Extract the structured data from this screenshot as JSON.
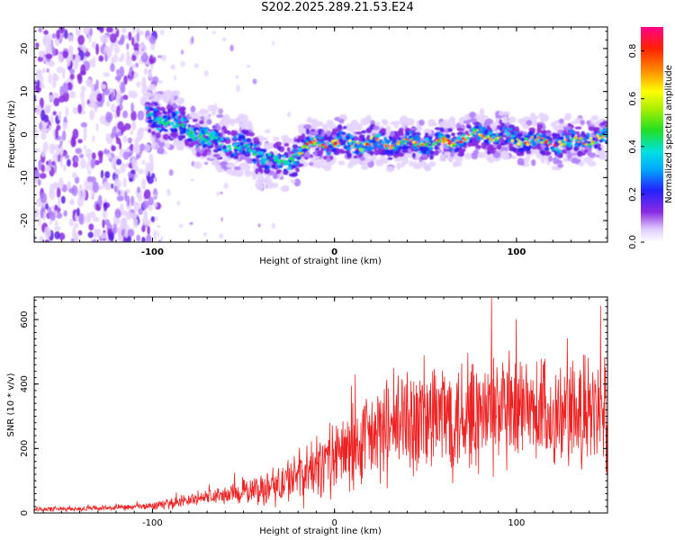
{
  "title": "S202.2025.289.21.53.E24",
  "chart_data": [
    {
      "type": "heatmap",
      "xlabel": "Height of straight line (km)",
      "ylabel": "Frequency (Hz)",
      "xlim": [
        -165,
        150
      ],
      "ylim": [
        -25,
        25
      ],
      "x_ticks": [
        -100,
        0,
        100
      ],
      "y_ticks": [
        -20,
        -10,
        0,
        10,
        20
      ],
      "colorbar": {
        "label": "Normalized spectral amplitude",
        "range": [
          0.0,
          0.9
        ],
        "ticks": [
          "0.0",
          "0.2",
          "0.4",
          "0.6",
          "0.8"
        ]
      },
      "ridge": {
        "x": [
          -100,
          -90,
          -80,
          -70,
          -60,
          -50,
          -40,
          -30,
          -20,
          -10,
          0,
          20,
          40,
          60,
          80,
          100,
          120,
          140,
          150
        ],
        "freq": [
          4,
          3,
          1,
          -1,
          -2,
          -3,
          -5,
          -7,
          -4,
          -2,
          -2,
          -2,
          -2,
          -2,
          0,
          -1,
          -2,
          -1,
          -1
        ]
      }
    },
    {
      "type": "line",
      "xlabel": "Height of straight line (km)",
      "ylabel": "SNR (10 * v/v)",
      "xlim": [
        -165,
        150
      ],
      "ylim": [
        0,
        670
      ],
      "x_ticks": [
        -100,
        0,
        100
      ],
      "y_ticks": [
        0,
        200,
        400,
        600
      ],
      "series": [
        {
          "name": "SNR",
          "color": "#ee2222",
          "x": [
            -165,
            -150,
            -130,
            -110,
            -100,
            -90,
            -80,
            -70,
            -60,
            -50,
            -40,
            -30,
            -20,
            -10,
            0,
            10,
            20,
            30,
            40,
            50,
            60,
            70,
            80,
            90,
            100,
            110,
            120,
            130,
            140,
            150
          ],
          "mean": [
            12,
            12,
            14,
            18,
            22,
            30,
            40,
            50,
            55,
            65,
            75,
            90,
            110,
            140,
            170,
            200,
            230,
            260,
            280,
            290,
            300,
            310,
            300,
            310,
            300,
            310,
            300,
            300,
            300,
            300
          ],
          "spread": [
            10,
            10,
            10,
            12,
            15,
            20,
            25,
            30,
            35,
            45,
            60,
            80,
            100,
            120,
            140,
            160,
            180,
            200,
            210,
            220,
            230,
            230,
            230,
            230,
            220,
            220,
            220,
            210,
            210,
            210
          ]
        }
      ]
    }
  ]
}
